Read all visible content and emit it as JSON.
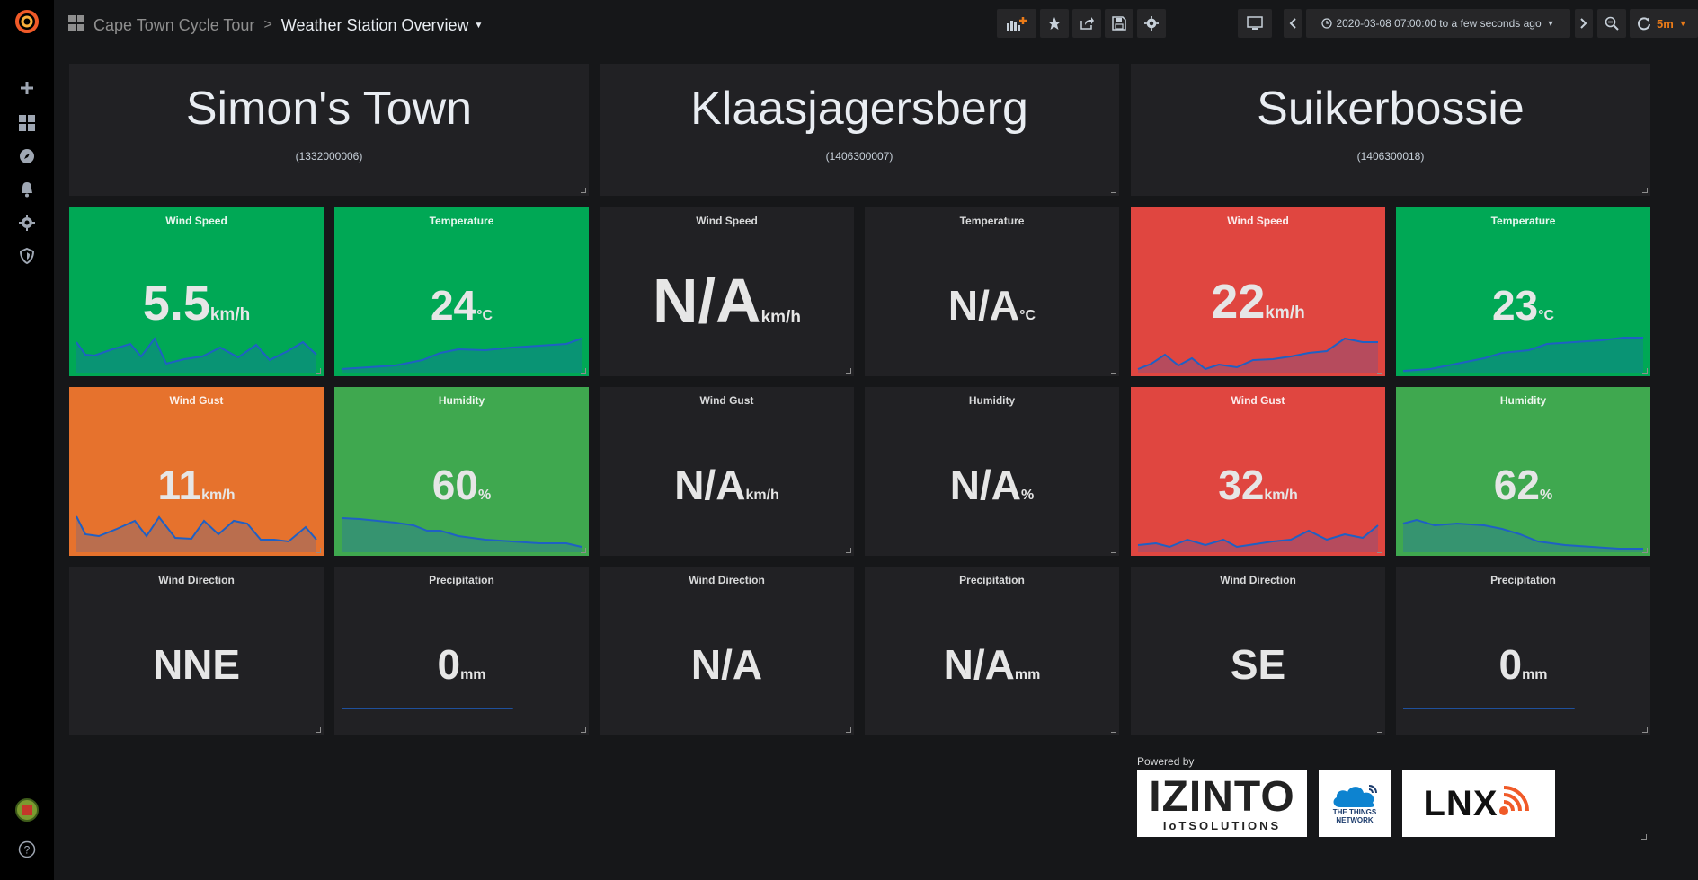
{
  "nav": {
    "folder": "Cape Town Cycle Tour",
    "separator": ">",
    "dashboard_title": "Weather Station Overview",
    "time_range": "2020-03-08 07:00:00 to a few seconds ago",
    "refresh_interval": "5m"
  },
  "stations": [
    {
      "name": "Simon's Town",
      "id": "(1332000006)"
    },
    {
      "name": "Klaasjagersberg",
      "id": "(1406300007)"
    },
    {
      "name": "Suikerbossie",
      "id": "(1406300018)"
    }
  ],
  "stats": {
    "s1_wind_speed": {
      "title": "Wind Speed",
      "value": "5.5",
      "unit": "km/h"
    },
    "s1_temperature": {
      "title": "Temperature",
      "value": "24",
      "unit": "°C"
    },
    "s1_wind_gust": {
      "title": "Wind Gust",
      "value": "11",
      "unit": "km/h"
    },
    "s1_humidity": {
      "title": "Humidity",
      "value": "60",
      "unit": "%"
    },
    "s1_wind_direction": {
      "title": "Wind Direction",
      "value": "NNE",
      "unit": ""
    },
    "s1_precipitation": {
      "title": "Precipitation",
      "value": "0",
      "unit": "mm"
    },
    "s2_wind_speed": {
      "title": "Wind Speed",
      "value": "N/A",
      "unit": "km/h"
    },
    "s2_temperature": {
      "title": "Temperature",
      "value": "N/A",
      "unit": "°C"
    },
    "s2_wind_gust": {
      "title": "Wind Gust",
      "value": "N/A",
      "unit": "km/h"
    },
    "s2_humidity": {
      "title": "Humidity",
      "value": "N/A",
      "unit": "%"
    },
    "s2_wind_direction": {
      "title": "Wind Direction",
      "value": "N/A",
      "unit": ""
    },
    "s2_precipitation": {
      "title": "Precipitation",
      "value": "N/A",
      "unit": "mm"
    },
    "s3_wind_speed": {
      "title": "Wind Speed",
      "value": "22",
      "unit": "km/h"
    },
    "s3_temperature": {
      "title": "Temperature",
      "value": "23",
      "unit": "°C"
    },
    "s3_wind_gust": {
      "title": "Wind Gust",
      "value": "32",
      "unit": "km/h"
    },
    "s3_humidity": {
      "title": "Humidity",
      "value": "62",
      "unit": "%"
    },
    "s3_wind_direction": {
      "title": "Wind Direction",
      "value": "SE",
      "unit": ""
    },
    "s3_precipitation": {
      "title": "Precipitation",
      "value": "0",
      "unit": "mm"
    }
  },
  "colors": {
    "ok_green": "#00a855",
    "humidity_green": "#3fa84f",
    "alert_red": "#e04640",
    "warn_orange": "#e6722d",
    "sparkline": "#1f60c4",
    "refresh_accent": "#eb7b18"
  },
  "footer": {
    "powered_by": "Powered by",
    "izinto_main": "IZINTO",
    "izinto_sub": "IoTSOLUTIONS",
    "ttn_line1": "THE THINGS",
    "ttn_line2": "NETWORK",
    "lnx": "LNX"
  },
  "icons": {
    "sidebar": [
      "grafana-logo-icon",
      "plus-icon",
      "dashboards-icon",
      "explore-icon",
      "bell-icon",
      "gear-icon",
      "shield-icon",
      "avatar",
      "help-icon"
    ],
    "navbar": [
      "add-panel-icon",
      "star-icon",
      "share-icon",
      "save-icon",
      "settings-icon",
      "tv-icon",
      "chevron-left-icon",
      "clock-icon",
      "chevron-right-icon",
      "zoom-out-icon",
      "refresh-icon"
    ]
  }
}
